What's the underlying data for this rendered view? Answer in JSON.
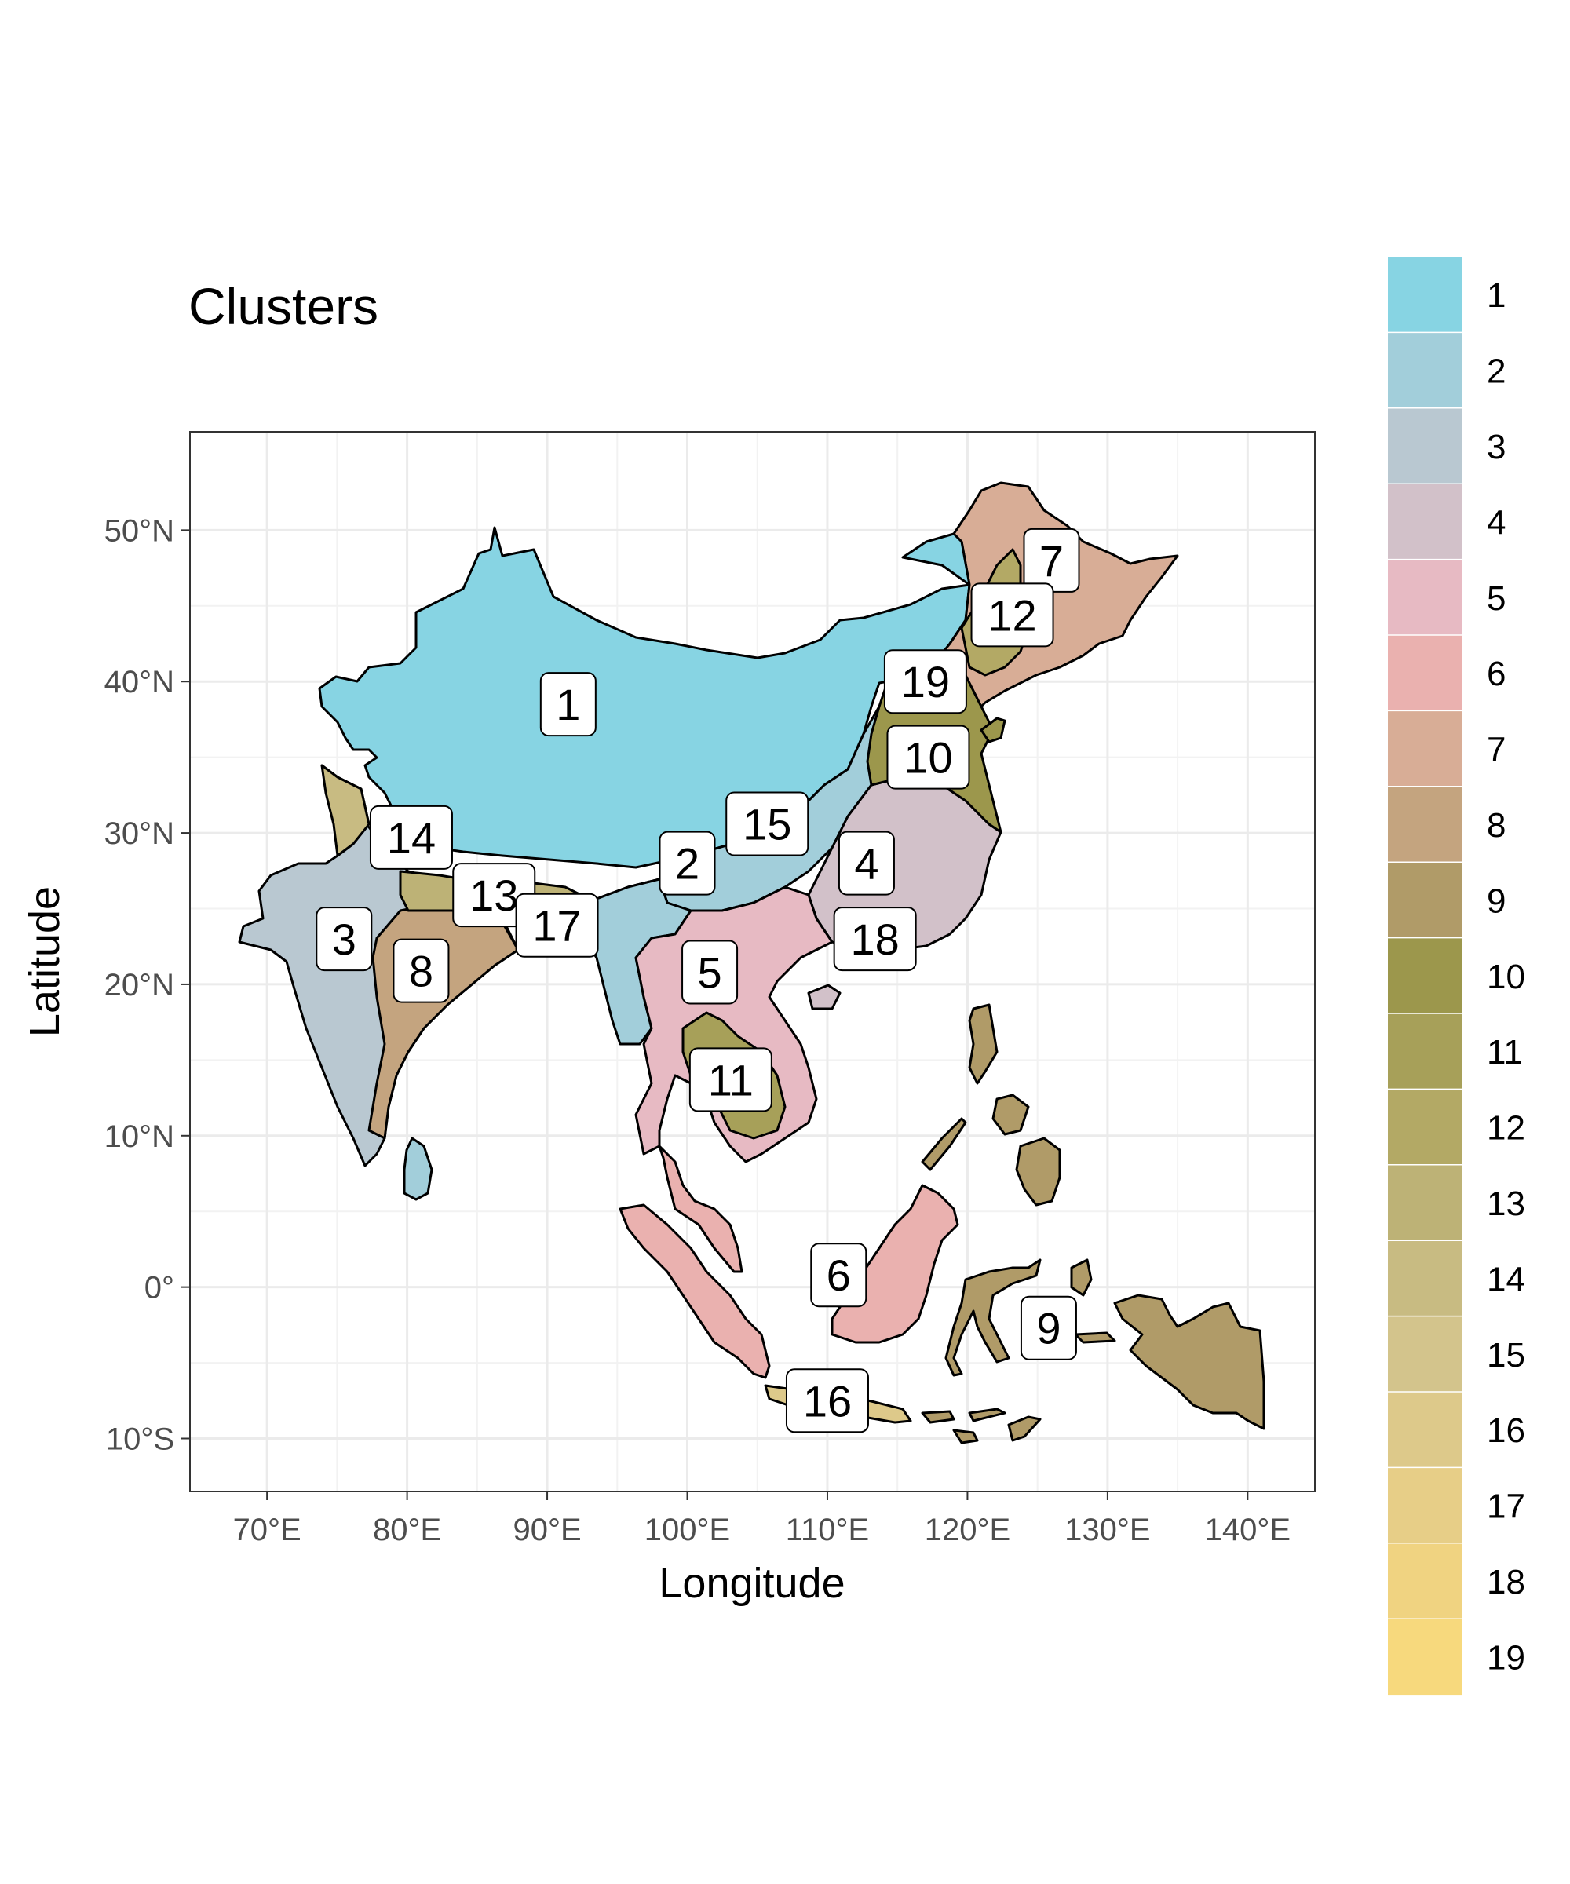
{
  "map": {
    "title": "Clusters",
    "xlabel": "Longitude",
    "ylabel": "Latitude",
    "x_ticks": [
      {
        "lon": 70,
        "label": "70°E"
      },
      {
        "lon": 80,
        "label": "80°E"
      },
      {
        "lon": 90,
        "label": "90°E"
      },
      {
        "lon": 100,
        "label": "100°E"
      },
      {
        "lon": 110,
        "label": "110°E"
      },
      {
        "lon": 120,
        "label": "120°E"
      },
      {
        "lon": 130,
        "label": "130°E"
      },
      {
        "lon": 140,
        "label": "140°E"
      }
    ],
    "y_ticks": [
      {
        "lat": 50,
        "label": "50°N"
      },
      {
        "lat": 40,
        "label": "40°N"
      },
      {
        "lat": 30,
        "label": "30°N"
      },
      {
        "lat": 20,
        "label": "20°N"
      },
      {
        "lat": 10,
        "label": "10°N"
      },
      {
        "lat": 0,
        "label": "0°"
      },
      {
        "lat": -10,
        "label": "10°S"
      }
    ],
    "lon_range": [
      64.5,
      144.8
    ],
    "lat_range": [
      -13.5,
      56.5
    ],
    "legend": {
      "position": "right",
      "items": [
        {
          "label": "1",
          "color": "#87D4E3"
        },
        {
          "label": "2",
          "color": "#A2CEDA"
        },
        {
          "label": "3",
          "color": "#B9C8D1"
        },
        {
          "label": "4",
          "color": "#D2C1C9"
        },
        {
          "label": "5",
          "color": "#E7BAC3"
        },
        {
          "label": "6",
          "color": "#EAB1AF"
        },
        {
          "label": "7",
          "color": "#D8AD96"
        },
        {
          "label": "8",
          "color": "#C4A47F"
        },
        {
          "label": "9",
          "color": "#B09B68"
        },
        {
          "label": "10",
          "color": "#9C974C"
        },
        {
          "label": "11",
          "color": "#A7A059"
        },
        {
          "label": "12",
          "color": "#B3A965"
        },
        {
          "label": "13",
          "color": "#BDB276"
        },
        {
          "label": "14",
          "color": "#C8BB82"
        },
        {
          "label": "15",
          "color": "#D3C48C"
        },
        {
          "label": "16",
          "color": "#DDC98A"
        },
        {
          "label": "17",
          "color": "#E7CE87"
        },
        {
          "label": "18",
          "color": "#F0D381"
        },
        {
          "label": "19",
          "color": "#F7D97D"
        }
      ]
    },
    "cluster_labels": [
      {
        "text": "1",
        "lon": 91.5,
        "lat": 38.5
      },
      {
        "text": "2",
        "lon": 100.0,
        "lat": 28.0
      },
      {
        "text": "3",
        "lon": 75.5,
        "lat": 23.0
      },
      {
        "text": "4",
        "lon": 112.8,
        "lat": 28.0
      },
      {
        "text": "5",
        "lon": 101.6,
        "lat": 20.8
      },
      {
        "text": "6",
        "lon": 110.8,
        "lat": 0.8
      },
      {
        "text": "7",
        "lon": 126.0,
        "lat": 48.0
      },
      {
        "text": "8",
        "lon": 81.0,
        "lat": 20.9
      },
      {
        "text": "9",
        "lon": 125.8,
        "lat": -2.7
      },
      {
        "text": "10",
        "lon": 117.2,
        "lat": 35.0
      },
      {
        "text": "11",
        "lon": 103.1,
        "lat": 13.7
      },
      {
        "text": "12",
        "lon": 123.2,
        "lat": 44.4
      },
      {
        "text": "13",
        "lon": 86.2,
        "lat": 25.9
      },
      {
        "text": "14",
        "lon": 80.3,
        "lat": 29.7
      },
      {
        "text": "15",
        "lon": 105.7,
        "lat": 30.6
      },
      {
        "text": "16",
        "lon": 110.0,
        "lat": -7.5
      },
      {
        "text": "17",
        "lon": 90.7,
        "lat": 23.9
      },
      {
        "text": "18",
        "lon": 113.4,
        "lat": 23.0
      },
      {
        "text": "19",
        "lon": 117.0,
        "lat": 40.0
      }
    ]
  }
}
